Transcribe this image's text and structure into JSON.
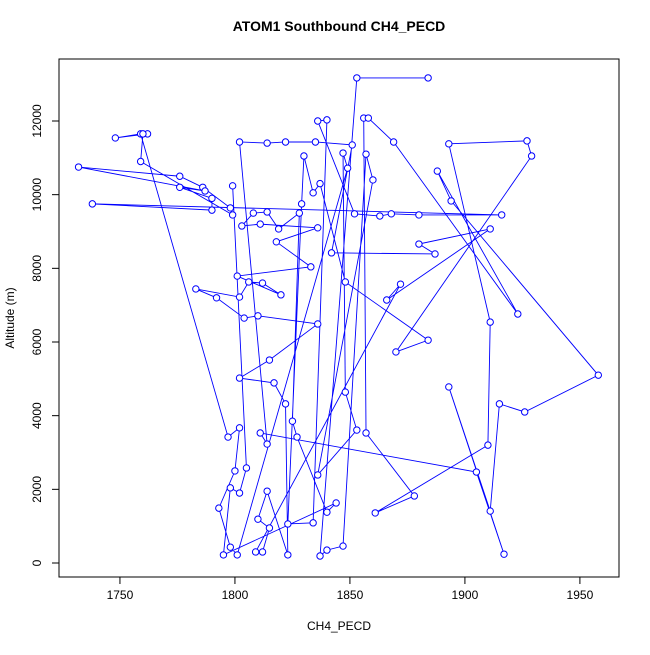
{
  "chart_data": {
    "type": "line",
    "title": "ATOM1 Southbound CH4_PECD",
    "x_label": "CH4_PECD",
    "y_label": "Altitude (m)",
    "color": "#0000ff",
    "x": [
      1884,
      1853,
      1837,
      1840,
      1847,
      1857,
      1860,
      1836,
      1853,
      1848,
      1847,
      1849,
      1801,
      1798,
      1793,
      1800,
      1802,
      1797,
      1759,
      1748,
      1762,
      1760,
      1759,
      1799,
      1798,
      1786,
      1776,
      1732,
      1787,
      1776,
      1790,
      1790,
      1738,
      1916,
      1880,
      1868,
      1863,
      1852,
      1836,
      1840,
      1834,
      1823,
      1829,
      1830,
      1834,
      1837,
      1848,
      1884,
      1870,
      1929,
      1927,
      1893,
      1911,
      1910,
      1861,
      1878,
      1857,
      1856,
      1858,
      1869,
      1923,
      1888,
      1894,
      1958,
      1926,
      1915,
      1911,
      1893,
      1917,
      1905,
      1811,
      1814,
      1802,
      1814,
      1822,
      1835,
      1851,
      1842,
      1887,
      1880,
      1911,
      1866,
      1872,
      1809,
      1812,
      1815,
      1810,
      1814,
      1823,
      1822,
      1817,
      1802,
      1815,
      1836,
      1810,
      1804,
      1792,
      1783,
      1802,
      1806,
      1812,
      1820,
      1801,
      1833,
      1818,
      1836,
      1811,
      1803,
      1808,
      1814,
      1819,
      1828,
      1825,
      1827,
      1840,
      1844,
      1795,
      1798,
      1802,
      1805,
      1799
    ],
    "values": [
      13170,
      13170,
      190,
      350,
      460,
      11100,
      10400,
      2390,
      3610,
      4640,
      11130,
      10720,
      220,
      430,
      1490,
      2500,
      3670,
      3420,
      11650,
      11540,
      11650,
      11650,
      10900,
      9450,
      9640,
      10200,
      10500,
      10750,
      10100,
      10200,
      9900,
      9580,
      9750,
      9450,
      9450,
      9480,
      9420,
      9480,
      12000,
      12030,
      1090,
      1060,
      9750,
      11050,
      10050,
      10300,
      7630,
      6050,
      5730,
      11050,
      11460,
      11380,
      6540,
      3200,
      1360,
      1820,
      3530,
      12080,
      12080,
      11430,
      6760,
      10640,
      9830,
      5100,
      4100,
      4320,
      1410,
      4780,
      240,
      2470,
      3530,
      3230,
      11430,
      11400,
      11430,
      11430,
      11350,
      8420,
      8390,
      8660,
      9070,
      7140,
      7570,
      300,
      300,
      950,
      1190,
      1950,
      220,
      4320,
      4890,
      5020,
      5510,
      6490,
      6710,
      6650,
      7200,
      7440,
      7220,
      7630,
      7600,
      7280,
      7790,
      8040,
      8720,
      9100,
      9200,
      9150,
      9500,
      9530,
      9070,
      9500,
      3850,
      3420,
      1380,
      1630,
      220,
      2040,
      1900,
      2580,
      10240
    ],
    "xlim": [
      1723.5,
      1967
    ],
    "ylim": [
      -380,
      13683
    ],
    "xticks": [
      1750,
      1800,
      1850,
      1900,
      1950
    ],
    "yticks": [
      0,
      2000,
      4000,
      6000,
      8000,
      10000,
      12000
    ]
  }
}
